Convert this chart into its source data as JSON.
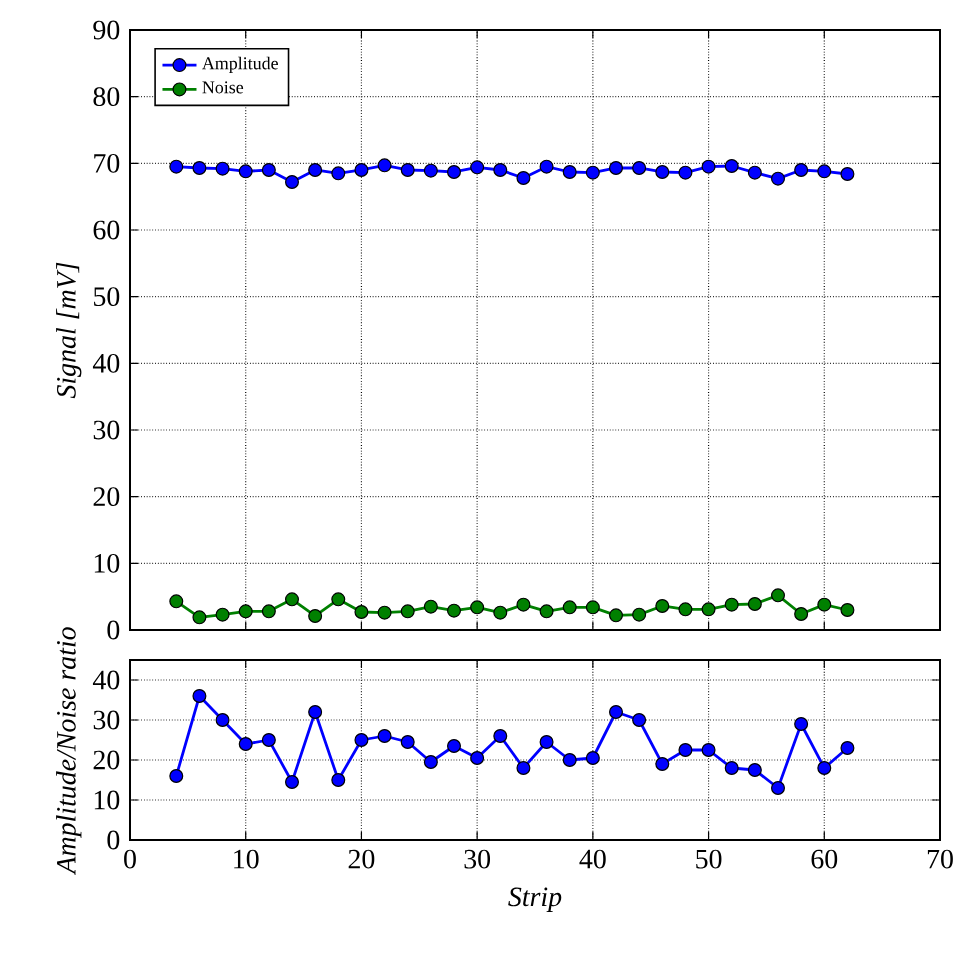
{
  "chart_data": [
    {
      "type": "line",
      "ylabel": "Signal [mV]",
      "x": [
        4,
        6,
        8,
        10,
        12,
        14,
        16,
        18,
        20,
        22,
        24,
        26,
        28,
        30,
        32,
        34,
        36,
        38,
        40,
        42,
        44,
        46,
        48,
        50,
        52,
        54,
        56,
        58,
        60,
        62
      ],
      "series": [
        {
          "name": "Amplitude",
          "color": "#0000ff",
          "values": [
            69.5,
            69.3,
            69.2,
            68.8,
            69.0,
            67.2,
            69.0,
            68.5,
            69.0,
            69.7,
            69.0,
            68.9,
            68.7,
            69.4,
            69.0,
            67.8,
            69.5,
            68.7,
            68.6,
            69.3,
            69.3,
            68.7,
            68.6,
            69.5,
            69.6,
            68.6,
            67.7,
            69.0,
            68.8,
            68.4
          ]
        },
        {
          "name": "Noise",
          "color": "#008000",
          "values": [
            4.3,
            1.9,
            2.3,
            2.8,
            2.8,
            4.6,
            2.1,
            4.6,
            2.7,
            2.6,
            2.8,
            3.5,
            2.9,
            3.4,
            2.6,
            3.8,
            2.8,
            3.4,
            3.4,
            2.2,
            2.3,
            3.6,
            3.1,
            3.1,
            3.8,
            3.9,
            5.2,
            2.4,
            3.8,
            3.0
          ]
        }
      ],
      "xlim": [
        0,
        70
      ],
      "xticks": [
        0,
        10,
        20,
        30,
        40,
        50,
        60,
        70
      ],
      "ylim": [
        0,
        90
      ],
      "yticks": [
        0,
        10,
        20,
        30,
        40,
        50,
        60,
        70,
        80,
        90
      ],
      "tick_labels": "y",
      "grid": true,
      "legend": "top left",
      "marker": "circle",
      "line_style": "solid"
    },
    {
      "type": "line",
      "xlabel": "Strip",
      "ylabel": "Amplitude/Noise ratio",
      "x": [
        4,
        6,
        8,
        10,
        12,
        14,
        16,
        18,
        20,
        22,
        24,
        26,
        28,
        30,
        32,
        34,
        36,
        38,
        40,
        42,
        44,
        46,
        48,
        50,
        52,
        54,
        56,
        58,
        60,
        62
      ],
      "series": [
        {
          "color": "#0000ff",
          "values": [
            16,
            36,
            30,
            24,
            25,
            14.5,
            32,
            15,
            25,
            26,
            24.5,
            19.5,
            23.5,
            20.5,
            26,
            18,
            24.5,
            20,
            20.5,
            32,
            30,
            19,
            22.5,
            22.5,
            18,
            17.5,
            13,
            29,
            18,
            23
          ]
        }
      ],
      "xlim": [
        0,
        70
      ],
      "xticks": [
        0,
        10,
        20,
        30,
        40,
        50,
        60,
        70
      ],
      "ylim": [
        0,
        45
      ],
      "yticks": [
        0,
        10,
        20,
        30,
        40
      ],
      "grid": true,
      "marker": "circle",
      "line_style": "solid"
    }
  ]
}
